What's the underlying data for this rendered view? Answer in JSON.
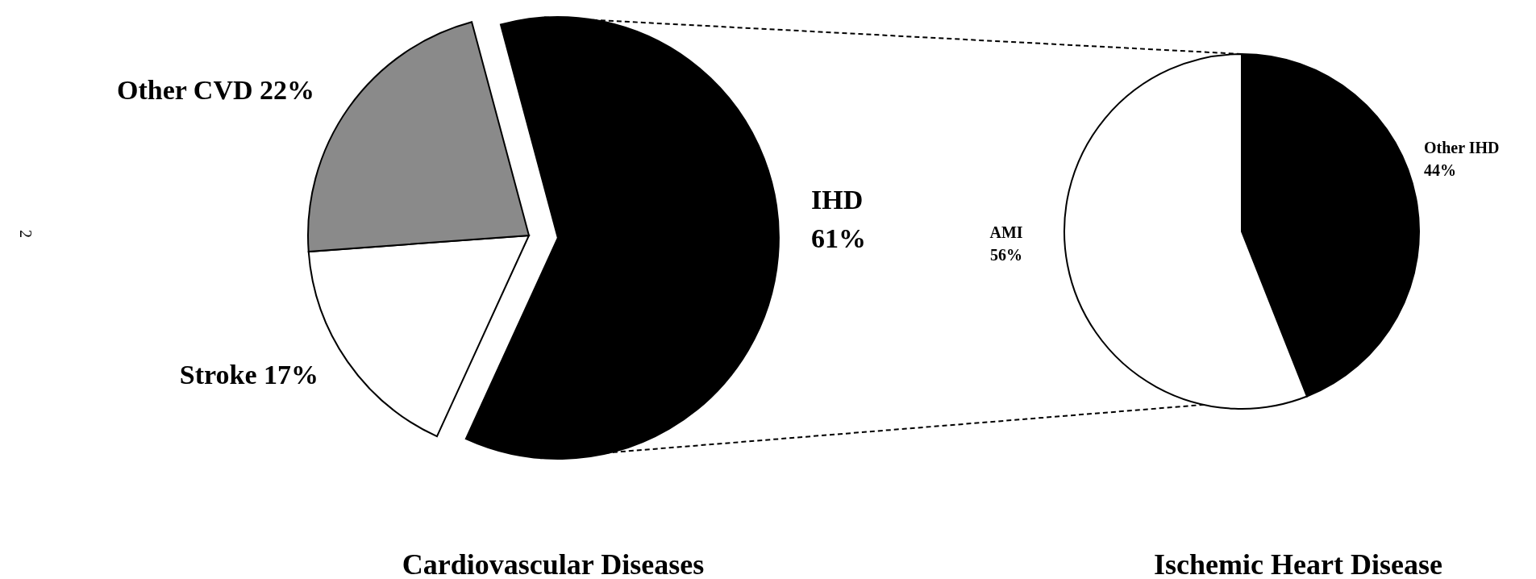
{
  "chart_data": [
    {
      "type": "pie",
      "title": "Cardiovascular Diseases",
      "categories": [
        "IHD",
        "Stroke",
        "Other CVD"
      ],
      "values": [
        61,
        17,
        22
      ],
      "value_labels": [
        "61%",
        "17%",
        "22%"
      ],
      "colors": [
        "#000000",
        "#ffffff",
        "#8a8a8a"
      ],
      "annotations": [
        "2"
      ]
    },
    {
      "type": "pie",
      "title": "Ischemic Heart Disease",
      "categories": [
        "Other IHD",
        "AMI"
      ],
      "values": [
        44,
        56
      ],
      "value_labels": [
        "44%",
        "56%"
      ],
      "colors": [
        "#000000",
        "#ffffff"
      ]
    }
  ]
}
